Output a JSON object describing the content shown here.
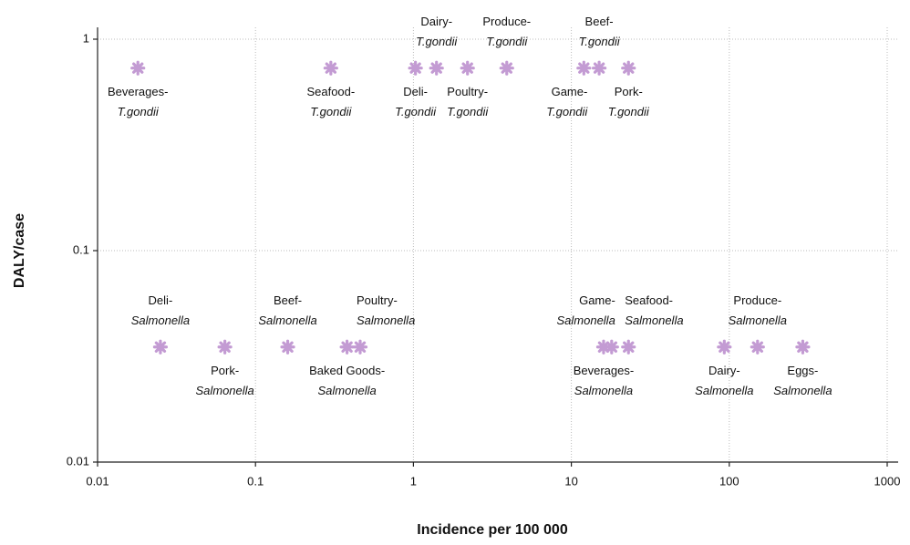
{
  "chart_data": {
    "type": "scatter",
    "xlabel": "Incidence per 100 000",
    "ylabel": "DALY/case",
    "log_x": true,
    "log_y": true,
    "grid": true,
    "color": "#c39bd3",
    "xlim": [
      0.01,
      1000
    ],
    "xticks": [
      0.01,
      0.1,
      1,
      10,
      100,
      1000
    ],
    "ylim": [
      0.01,
      1
    ],
    "yticks": [
      0.01,
      0.1,
      1
    ],
    "x": [
      0.018,
      0.3,
      1.03,
      1.4,
      2.2,
      3.9,
      12,
      15,
      23,
      0.025,
      0.064,
      0.16,
      0.38,
      0.46,
      16,
      18,
      23,
      93,
      151,
      292
    ],
    "y": [
      0.73,
      0.73,
      0.73,
      0.73,
      0.73,
      0.73,
      0.73,
      0.73,
      0.73,
      0.035,
      0.035,
      0.035,
      0.035,
      0.035,
      0.035,
      0.035,
      0.035,
      0.035,
      0.035,
      0.035
    ],
    "point_labels": [
      [
        "Beverages-",
        "T.gondii"
      ],
      [
        "Seafood-",
        "T.gondii"
      ],
      [
        "Deli-",
        "T.gondii"
      ],
      [
        "Dairy-",
        "T.gondii"
      ],
      [
        "Poultry-",
        "T.gondii"
      ],
      [
        "Produce-",
        "T.gondii"
      ],
      [
        "Game-",
        "T.gondii"
      ],
      [
        "Beef-",
        "T.gondii"
      ],
      [
        "Pork-",
        "T.gondii"
      ],
      [
        "Deli-",
        "Salmonella"
      ],
      [
        "Pork-",
        "Salmonella"
      ],
      [
        "Beef-",
        "Salmonella"
      ],
      [
        "Baked Goods-",
        "Salmonella"
      ],
      [
        "Poultry-",
        "Salmonella"
      ],
      [
        "Beverages-",
        "Salmonella"
      ],
      [
        "Game-",
        "Salmonella"
      ],
      [
        "Seafood-",
        "Salmonella"
      ],
      [
        "Dairy-",
        "Salmonella"
      ],
      [
        "Produce-",
        "Salmonella"
      ],
      [
        "Eggs-",
        "Salmonella"
      ]
    ],
    "label_side": [
      "below",
      "below",
      "below",
      "above",
      "below",
      "above",
      "below-left",
      "above",
      "below",
      "above",
      "below",
      "above",
      "below",
      "above-right",
      "below",
      "above-left",
      "above-right",
      "below",
      "above",
      "below"
    ]
  }
}
